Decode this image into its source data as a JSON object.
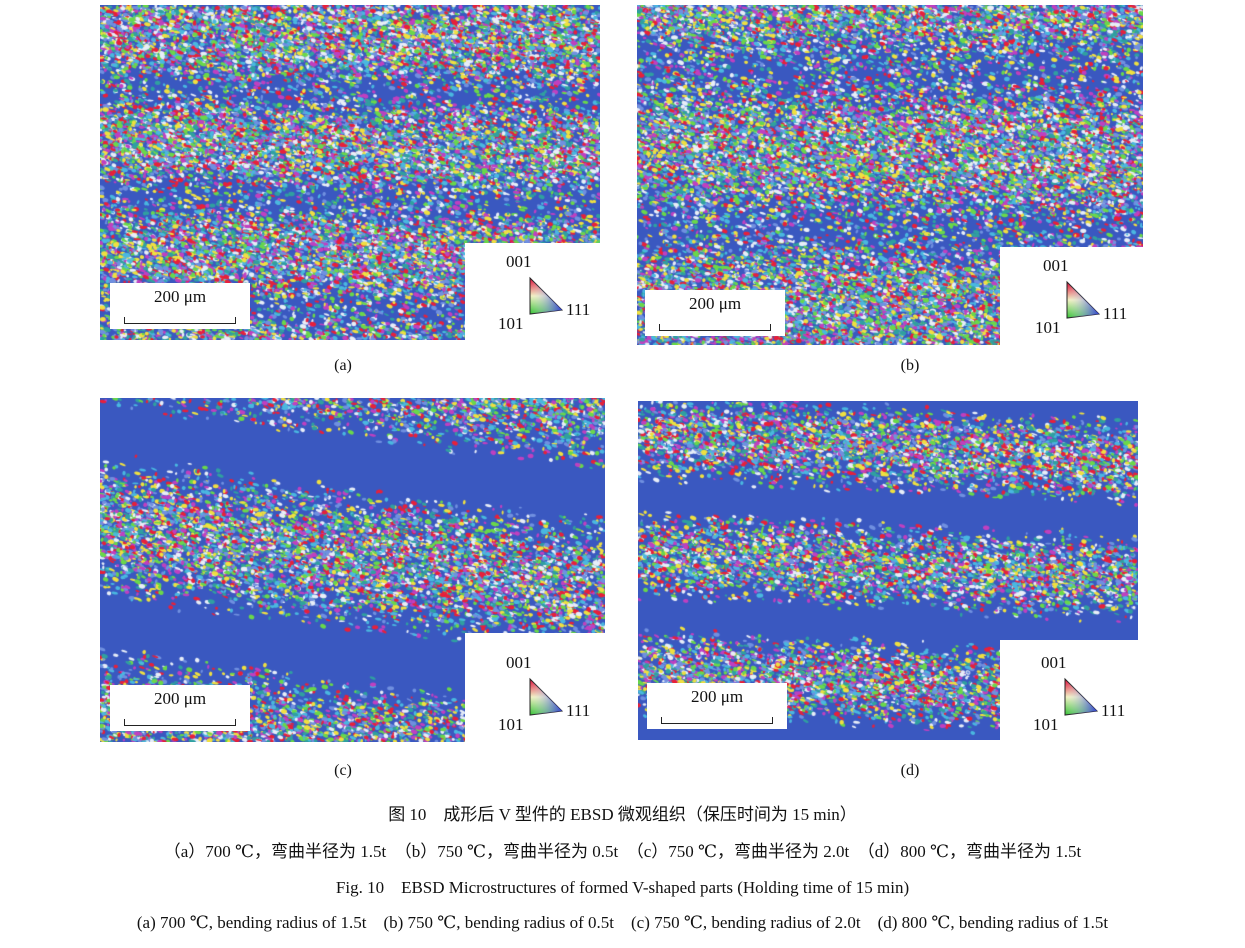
{
  "panels": [
    {
      "id": "a",
      "label": "(a)",
      "scale_bar": "200 μm"
    },
    {
      "id": "b",
      "label": "(b)",
      "scale_bar": "200 μm"
    },
    {
      "id": "c",
      "label": "(c)",
      "scale_bar": "200 μm"
    },
    {
      "id": "d",
      "label": "(d)",
      "scale_bar": "200 μm"
    }
  ],
  "legend": {
    "top": "001",
    "left": "101",
    "right": "111"
  },
  "colors": {
    "matrix_blue": "#3a58c0",
    "red": "#e8203a",
    "green": "#6ad84a",
    "cyan": "#4ab8e0",
    "white": "#e8eef8"
  },
  "caption": {
    "cn_title": "图 10　成形后 V 型件的 EBSD 微观组织（保压时间为 15 min）",
    "cn_sub": "（a）700 ℃，弯曲半径为 1.5t　（b）750 ℃，弯曲半径为 0.5t　（c）750 ℃，弯曲半径为 2.0t　（d）800 ℃，弯曲半径为 1.5t",
    "en_title": "Fig. 10　EBSD Microstructures of formed V-shaped parts (Holding time of 15 min)",
    "en_sub": "(a) 700 ℃, bending radius of 1.5t　(b) 750 ℃, bending radius of 0.5t　(c) 750 ℃, bending radius of 2.0t　(d) 800 ℃, bending radius of 1.5t"
  }
}
